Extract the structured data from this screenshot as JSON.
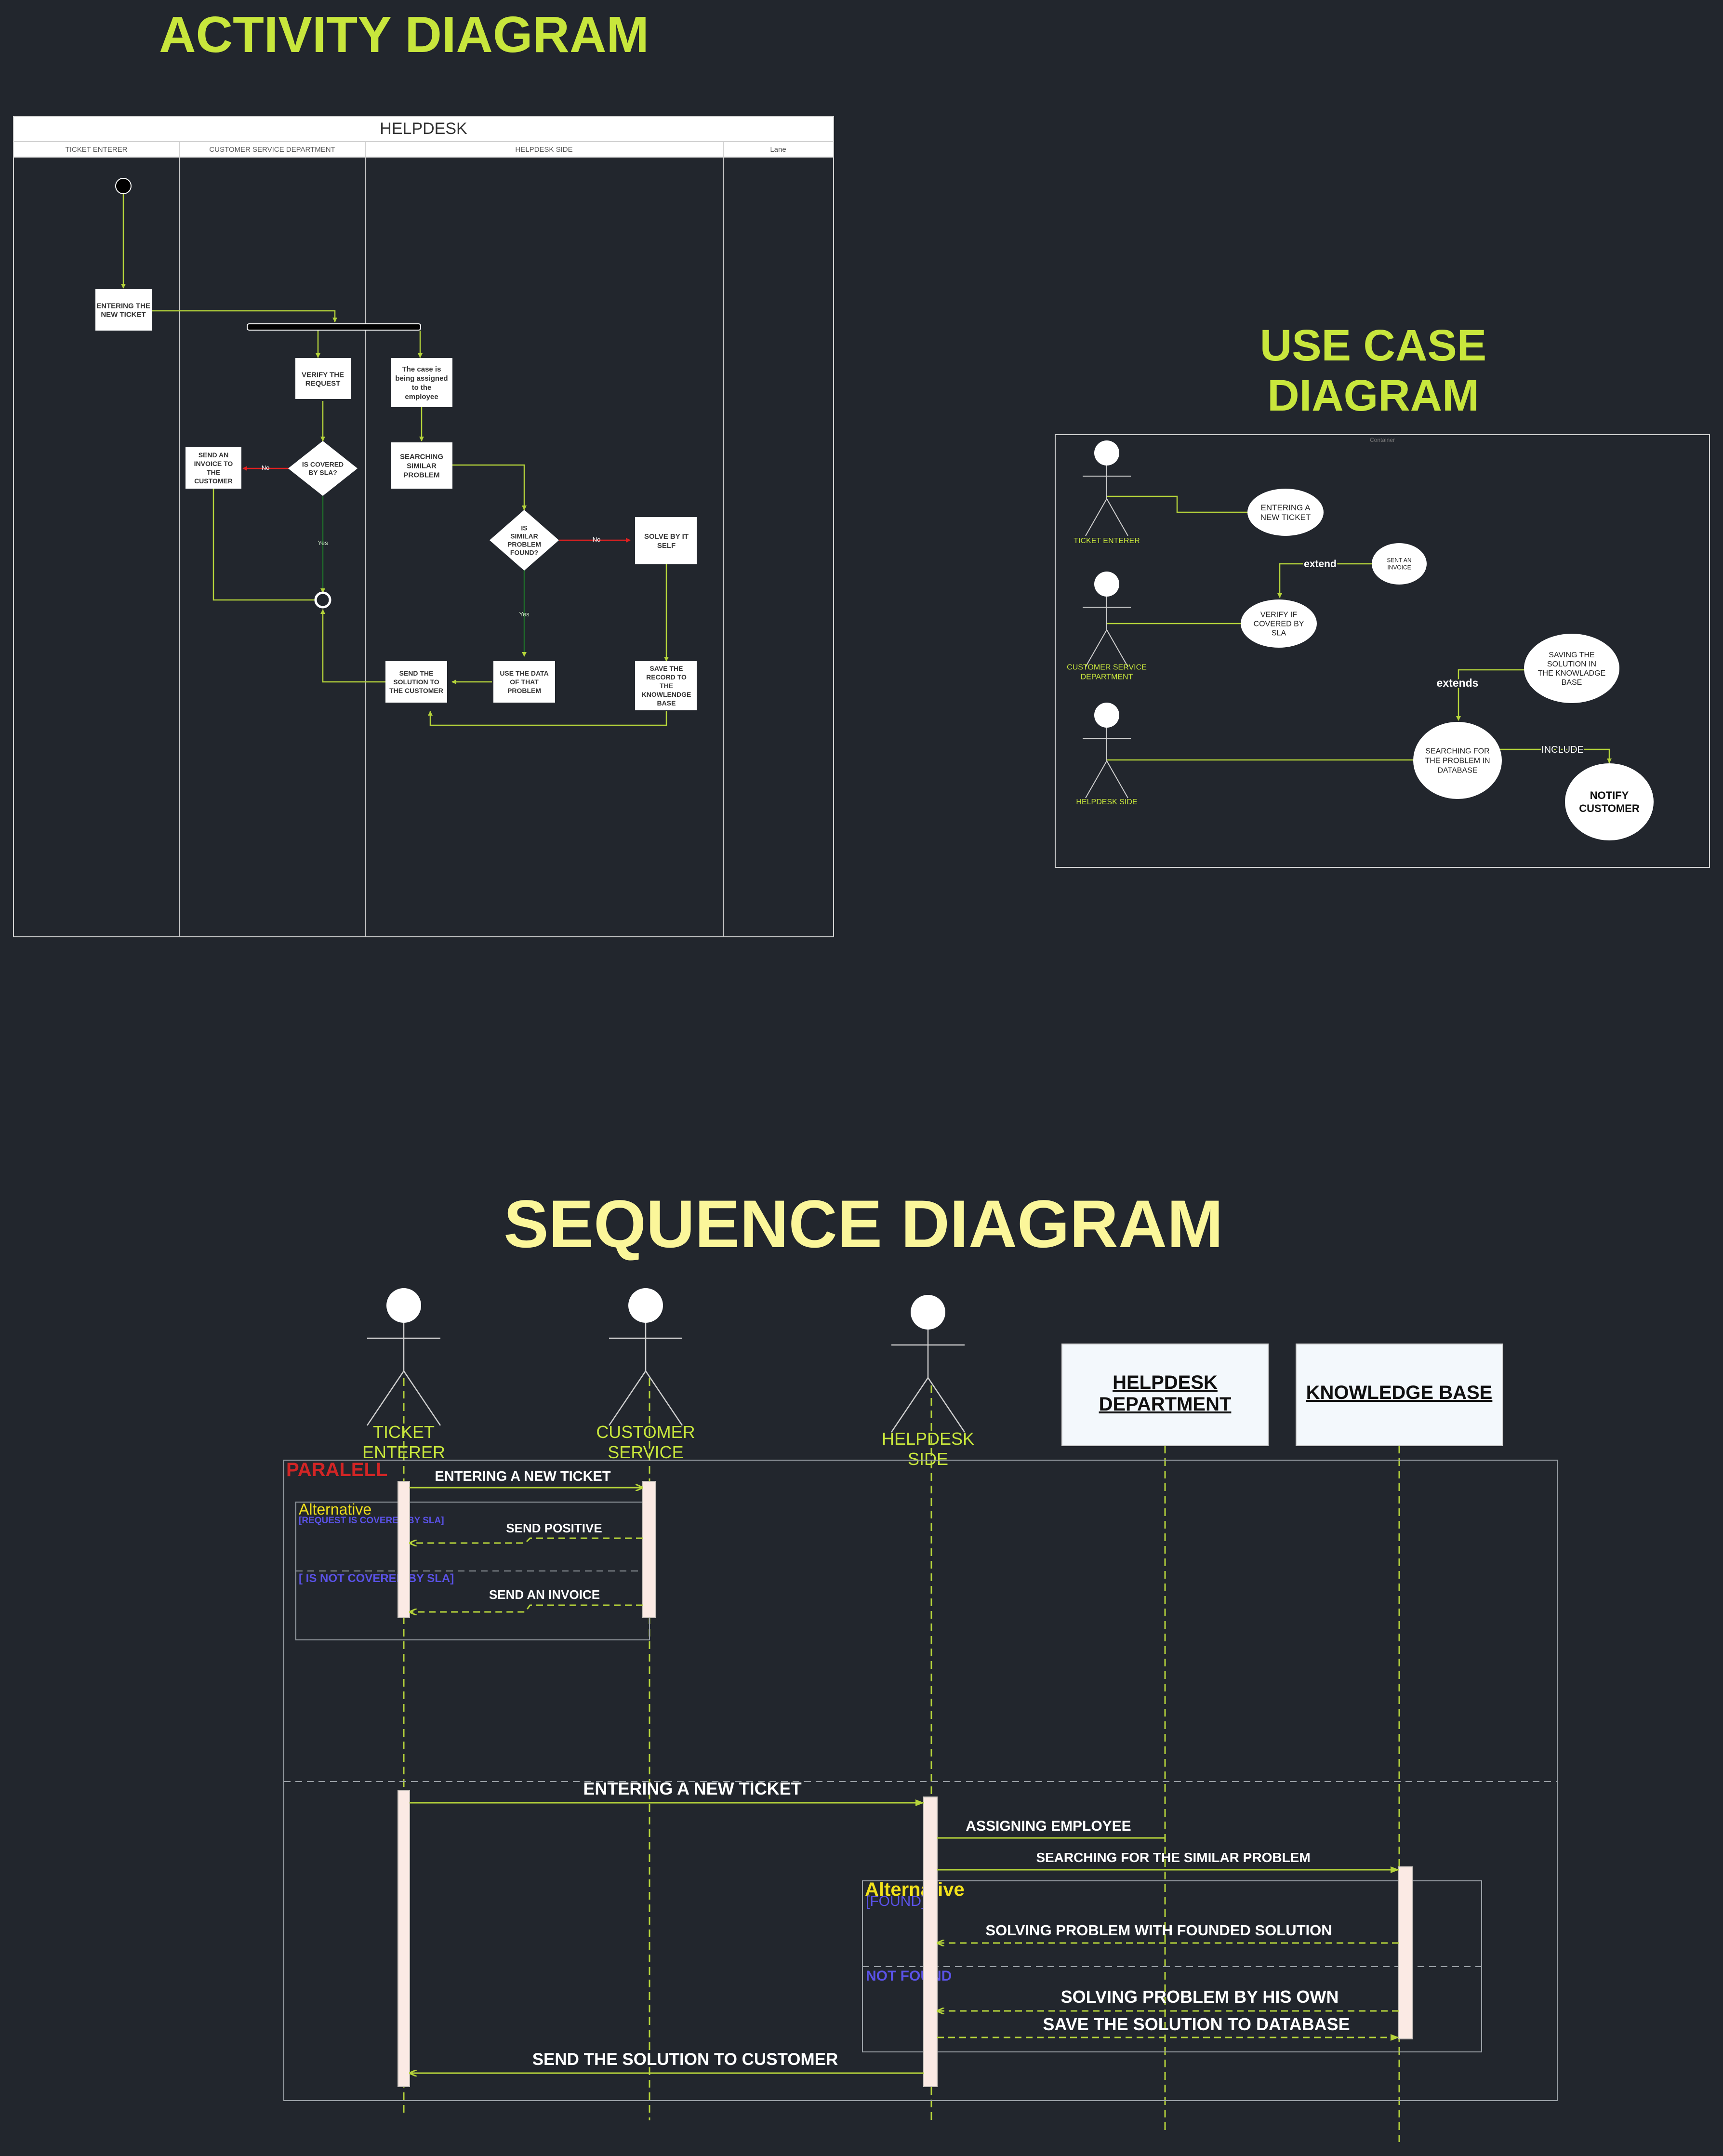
{
  "titles": {
    "activity": "ACTIVITY  DIAGRAM",
    "usecase_line1": "USE CASE",
    "usecase_line2": "DIAGRAM",
    "sequence": "SEQUENCE DIAGRAM"
  },
  "colors": {
    "background": "#22262d",
    "title_green": "#c8e63c",
    "title_yellow": "#fbf69a",
    "line_green": "#b5d33a",
    "node_white": "#ffffff",
    "fragment_red": "#d22525",
    "guard_blue": "#5a52e6",
    "alt_yellow": "#f2e11c",
    "no_red": "#e02020",
    "yes_green": "#1f6b2a"
  },
  "activity": {
    "pool_title": "HELPDESK",
    "lanes": [
      "TICKET ENTERER",
      "CUSTOMER SERVICE DEPARTMENT",
      "HELPDESK SIDE",
      "Lane"
    ],
    "nodes": {
      "entering": "ENTERING THE NEW TICKET",
      "verify": "VERIFY THE REQUEST",
      "assigned": "The case is being assigned to the employee",
      "searching": "SEARCHING SIMILAR PROBLEM",
      "covered": "IS COVERED BY SLA?",
      "invoice": "SEND AN INVOICE TO THE CUSTOMER",
      "similar": "IS SIMILAR PROBLEM FOUND?",
      "solve": "SOLVE BY IT SELF",
      "use_data": "USE THE DATA OF THAT PROBLEM",
      "save": "SAVE THE RECORD TO THE KNOWLENDGE BASE",
      "send": "SEND THE SOLUTION TO THE CUSTOMER"
    },
    "labels": {
      "no": "No",
      "yes": "Yes"
    }
  },
  "usecase": {
    "container_label": "Container",
    "actors": [
      "TICKET ENTERER",
      "CUSTOMER SERVICE DEPARTMENT",
      "HELPDESK SIDE"
    ],
    "cases": {
      "entering": "ENTERING A NEW TICKET",
      "invoice": "SENT AN INVOICE",
      "verify": "VERIFY IF COVERED BY SLA",
      "saving": "SAVING THE SOLUTION IN THE KNOWLADGE BASE",
      "searching": "SEARCHING FOR THE PROBLEM IN DATABASE",
      "notify": "NOTIFY CUSTOMER"
    },
    "relations": {
      "extend": "extend",
      "extends": "extends",
      "include": "INCLUDE"
    }
  },
  "sequence": {
    "actors": {
      "ticket": [
        "TICKET",
        "ENTERER"
      ],
      "service": [
        "CUSTOMER",
        "SERVICE"
      ],
      "helpdesk": [
        "HELPDESK",
        "SIDE"
      ]
    },
    "objects": {
      "department": [
        "HELPDESK",
        "DEPARTMENT"
      ],
      "knowledge": "KNOWLEDGE BASE"
    },
    "fragments": {
      "parallel": "PARALELL",
      "alt1": "Alternative",
      "alt1_guard1": "[REQUEST IS COVERED BY SLA]",
      "alt1_guard2": "[ IS NOT COVERED BY SLA]",
      "alt2": "Alternative",
      "alt2_guard1": "[FOUND]",
      "alt2_guard2": "NOT FOUND"
    },
    "messages": {
      "m1": "ENTERING A NEW TICKET",
      "m2": "SEND POSITIVE",
      "m3": "SEND AN INVOICE",
      "m4": "ENTERING A NEW TICKET",
      "m5": "ASSIGNING EMPLOYEE",
      "m6": "SEARCHING FOR THE SIMILAR PROBLEM",
      "m7": "SOLVING PROBLEM WITH FOUNDED SOLUTION",
      "m8": "SOLVING PROBLEM BY HIS OWN",
      "m9": "SAVE THE SOLUTION TO DATABASE",
      "m10": "SEND THE SOLUTION TO CUSTOMER"
    }
  }
}
